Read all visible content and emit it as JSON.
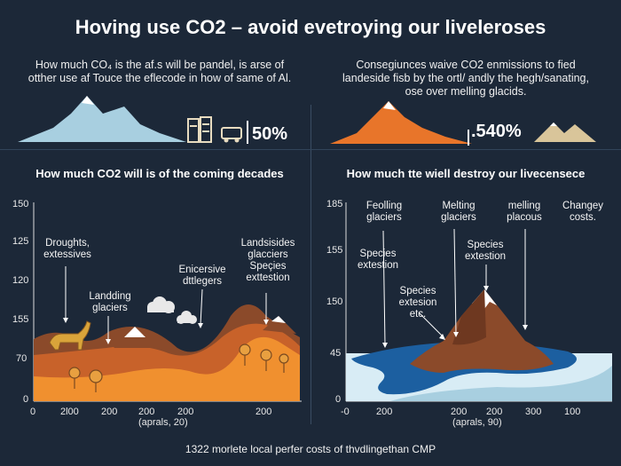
{
  "title": "Hoving use CO2 – avoid evetroying our liveleroses",
  "left_intro": [
    "How much CO₄ is the af.s will be pandel, is arse of",
    "otther use af Touce the eflecode in how of same of Al."
  ],
  "right_intro": [
    "Consegiunces waive CO2 enmissions to fied",
    "landeside fisb by the ortl/ andly the hegh/sanating,",
    "ose over melling glacids."
  ],
  "left_percent": "50%",
  "right_percent": ".540%",
  "left_chart": {
    "title": "How much CO2 will is of the coming decades",
    "y_ticks": [
      "150",
      "125",
      "120",
      "155",
      "70",
      "0"
    ],
    "x_ticks": [
      "0",
      "2l00",
      "200",
      "200",
      "200",
      "200"
    ],
    "x_note": "(aprals, 20)",
    "annotations": [
      "Droughts,",
      "extessives",
      "Landding",
      "glaciers",
      "Enicersive",
      "dttlegers",
      "Landsisides",
      "glacciers",
      "Speçies",
      "exttestion"
    ]
  },
  "right_chart": {
    "title": "How much tte wiell destroy our livecensece",
    "y_ticks": [
      "185",
      "155",
      "150",
      "45",
      "0"
    ],
    "x_ticks": [
      "-0",
      "200",
      "200",
      "200",
      "300",
      "100"
    ],
    "x_note": "(aprals, 90)",
    "annotations": [
      "Feolling",
      "glaciers",
      "Melting",
      "glaciers",
      "melling",
      "placous",
      "Changey",
      "costs.",
      "Species",
      "extestion",
      "Species",
      "extestion",
      "Species",
      "extesion",
      "etc."
    ]
  },
  "footer": "1322 morlete local perfer costs of thvdlingethan CMP",
  "colors": {
    "background": "#1c2838",
    "orange": "#e8752a",
    "brown": "#8b4a2a",
    "ice": "#a8cfe0",
    "water": "#1c5fa0"
  }
}
